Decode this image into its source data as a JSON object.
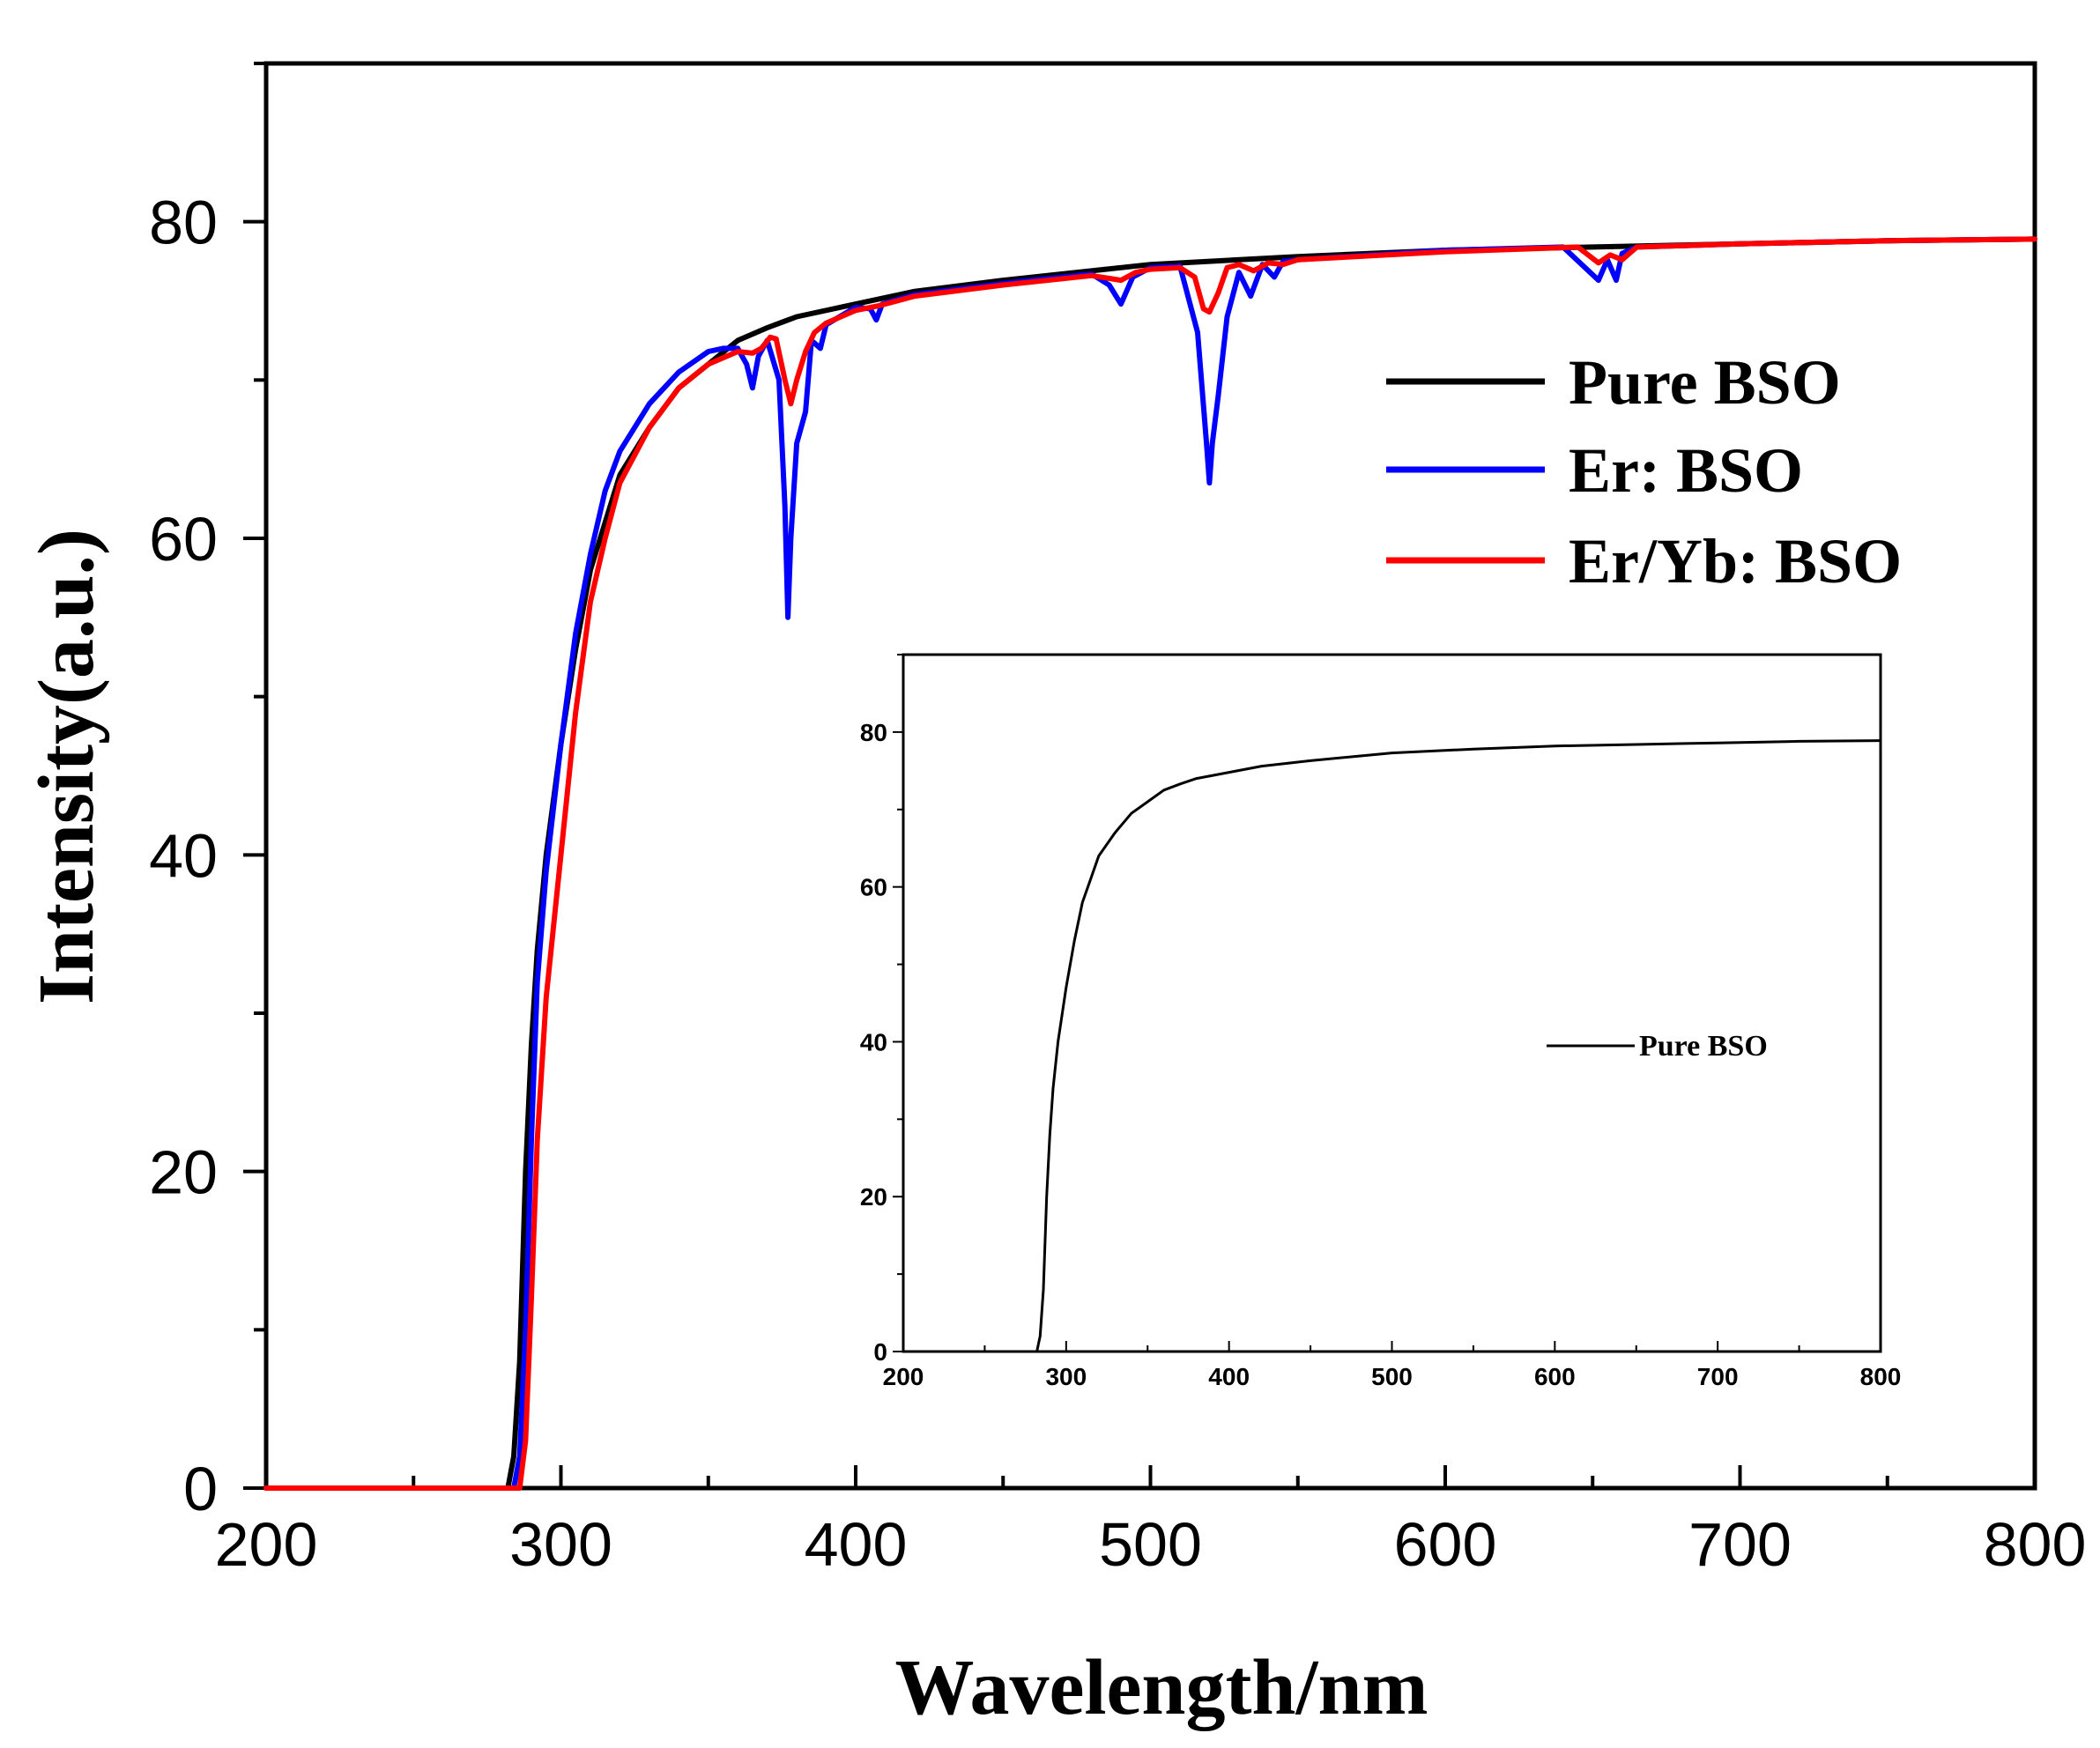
{
  "chart_data": [
    {
      "type": "line",
      "title": "",
      "xlabel": "Wavelength/nm",
      "ylabel": "Intensity(a.u.)",
      "xlim": [
        200,
        800
      ],
      "ylim": [
        0,
        90
      ],
      "x_ticks": [
        200,
        300,
        400,
        500,
        600,
        700,
        800
      ],
      "y_ticks": [
        0,
        20,
        40,
        60,
        80
      ],
      "x_tick_labels": [
        "200",
        "300",
        "400",
        "500",
        "600",
        "700",
        "800"
      ],
      "y_tick_labels": [
        "0",
        "20",
        "40",
        "60",
        "80"
      ],
      "legend_position": "upper-right",
      "series": [
        {
          "name": "Pure BSO",
          "color": "#000000",
          "x": [
            200,
            270,
            282,
            284,
            286,
            288,
            290,
            292,
            295,
            300,
            305,
            310,
            315,
            320,
            330,
            340,
            350,
            360,
            370,
            380,
            400,
            420,
            450,
            480,
            500,
            550,
            600,
            650,
            700,
            750,
            800
          ],
          "y": [
            0,
            0,
            0,
            2,
            8,
            20,
            28,
            34,
            40,
            47,
            53,
            58,
            61,
            64,
            67,
            69.5,
            71,
            72.5,
            73.3,
            74,
            74.8,
            75.6,
            76.3,
            76.9,
            77.3,
            77.8,
            78.2,
            78.4,
            78.6,
            78.8,
            78.9
          ]
        },
        {
          "name": "Er: BSO",
          "color": "#0000ff",
          "x": [
            200,
            272,
            284,
            286,
            288,
            290,
            292,
            295,
            300,
            305,
            310,
            315,
            320,
            330,
            340,
            350,
            355,
            360,
            363,
            365,
            367,
            370,
            374,
            376,
            377,
            378,
            380,
            383,
            385,
            388,
            390,
            400,
            405,
            407,
            409,
            420,
            450,
            480,
            486,
            490,
            494,
            500,
            510,
            516,
            519,
            520,
            521,
            523,
            526,
            530,
            534,
            538,
            542,
            545,
            550,
            600,
            640,
            648,
            652,
            655,
            658,
            660,
            665,
            700,
            750,
            800
          ],
          "y": [
            0,
            0,
            0,
            2,
            10,
            22,
            32,
            39,
            47,
            54,
            59,
            63,
            65.5,
            68.5,
            70.5,
            71.8,
            72,
            72,
            71,
            69.5,
            71.5,
            72.5,
            70,
            62,
            55,
            60,
            66,
            68,
            72.5,
            72,
            73.5,
            74.6,
            74.5,
            73.8,
            74.8,
            75.4,
            76.1,
            76.7,
            76,
            74.8,
            76.5,
            77.1,
            77.2,
            73,
            66,
            63.5,
            66,
            69,
            74,
            76.8,
            75.3,
            77.3,
            76.5,
            77.5,
            77.6,
            78.2,
            78.4,
            77,
            76.3,
            77.6,
            76.3,
            78,
            78.4,
            78.6,
            78.8,
            78.9
          ]
        },
        {
          "name": "Er/Yb: BSO",
          "color": "#ff0000",
          "x": [
            200,
            280,
            286,
            288,
            290,
            292,
            295,
            300,
            305,
            310,
            315,
            320,
            330,
            340,
            350,
            360,
            365,
            368,
            371,
            373,
            376,
            378,
            380,
            383,
            386,
            390,
            400,
            408,
            420,
            450,
            480,
            490,
            495,
            500,
            510,
            515,
            518,
            520,
            523,
            526,
            530,
            535,
            540,
            545,
            550,
            600,
            645,
            652,
            656,
            660,
            665,
            700,
            750,
            800
          ],
          "y": [
            0,
            0,
            0,
            3,
            12,
            22,
            31,
            40,
            49,
            56,
            60,
            63.5,
            67,
            69.5,
            71,
            71.8,
            71.7,
            72,
            72.7,
            72.6,
            70,
            68.5,
            70,
            71.8,
            73,
            73.6,
            74.4,
            74.7,
            75.3,
            76,
            76.6,
            76.3,
            76.8,
            77,
            77.1,
            76.5,
            74.5,
            74.3,
            75.5,
            77.1,
            77.3,
            76.9,
            77.4,
            77.3,
            77.6,
            78.1,
            78.4,
            77.4,
            77.9,
            77.6,
            78.4,
            78.6,
            78.8,
            78.9
          ]
        }
      ]
    },
    {
      "type": "line",
      "title": "",
      "xlabel": "",
      "ylabel": "",
      "xlim": [
        200,
        800
      ],
      "ylim": [
        0,
        90
      ],
      "x_ticks": [
        200,
        300,
        400,
        500,
        600,
        700,
        800
      ],
      "y_ticks": [
        0,
        20,
        40,
        60,
        80
      ],
      "x_tick_labels": [
        "200",
        "300",
        "400",
        "500",
        "600",
        "700",
        "800"
      ],
      "y_tick_labels": [
        "0",
        "20",
        "40",
        "60",
        "80"
      ],
      "legend_position": "center",
      "series": [
        {
          "name": "Pure BSO",
          "color": "#000000",
          "x": [
            200,
            280,
            282,
            284,
            286,
            288,
            290,
            292,
            295,
            300,
            305,
            310,
            315,
            320,
            330,
            340,
            350,
            360,
            370,
            380,
            400,
            420,
            450,
            480,
            500,
            550,
            600,
            650,
            700,
            750,
            800
          ],
          "y": [
            0,
            0,
            0,
            2,
            8,
            20,
            28,
            34,
            40,
            47,
            53,
            58,
            61,
            64,
            67,
            69.5,
            71,
            72.5,
            73.3,
            74,
            74.8,
            75.6,
            76.3,
            76.9,
            77.3,
            77.8,
            78.2,
            78.4,
            78.6,
            78.8,
            78.9
          ]
        }
      ]
    }
  ]
}
